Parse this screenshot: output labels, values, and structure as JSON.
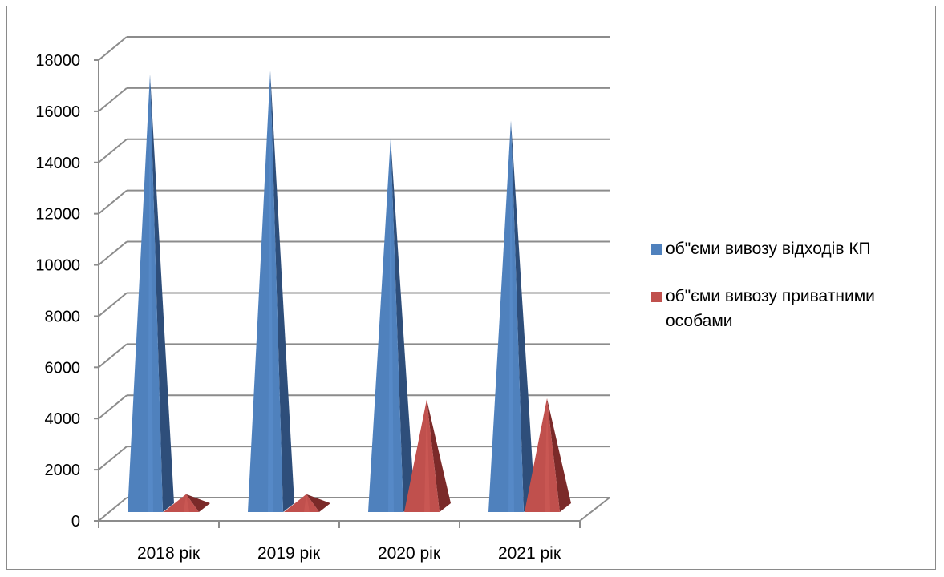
{
  "chart_data": {
    "type": "bar",
    "categories": [
      "2018 рік",
      "2019 рік",
      "2020 рік",
      "2021 рік"
    ],
    "series": [
      {
        "name": "об\"єми вивозу відходів КП",
        "values": [
          17300,
          17450,
          14800,
          15500
        ],
        "color": "#4F81BD",
        "dark_color": "#2E4E7A",
        "light_color": "#5F93D2"
      },
      {
        "name": "об\"єми вивозу приватними особами",
        "values": [
          900,
          900,
          4600,
          4650
        ],
        "color": "#C0504D",
        "dark_color": "#7B2A29",
        "light_color": "#D45F5B"
      }
    ],
    "yticks": [
      "0",
      "2000",
      "4000",
      "6000",
      "8000",
      "10000",
      "12000",
      "14000",
      "16000",
      "18000"
    ],
    "ylim": [
      0,
      18000
    ],
    "grid": true,
    "legend_position": "right",
    "style": "3d-pyramid"
  }
}
